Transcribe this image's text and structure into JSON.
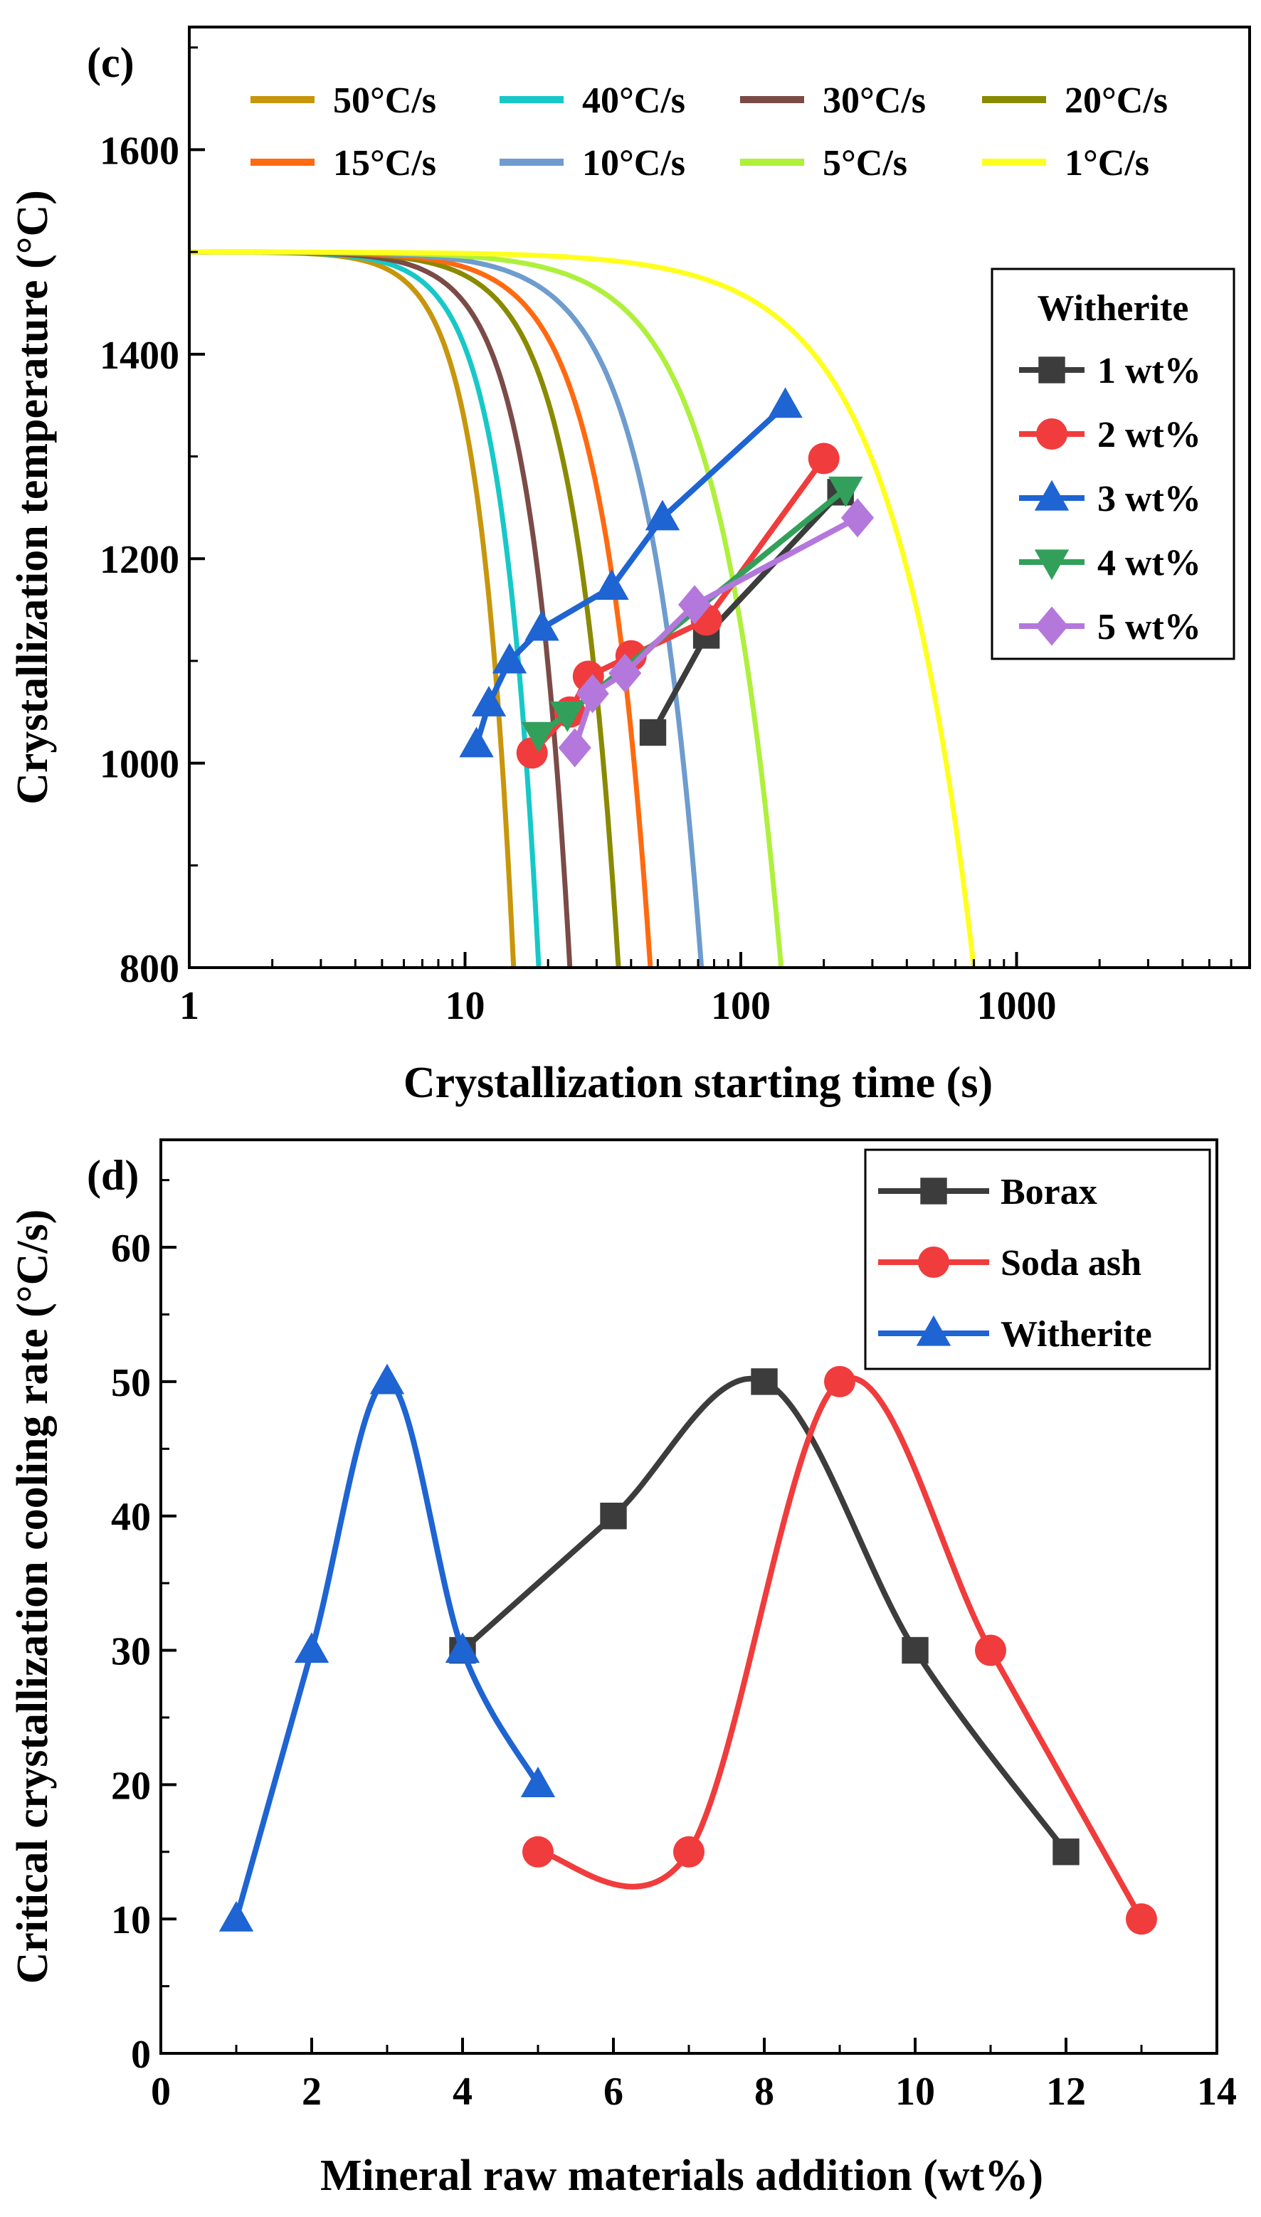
{
  "chart_data": [
    {
      "panel": "(c)",
      "type": "line",
      "xscale": "log",
      "xlabel": "Crystallization starting time (s)",
      "ylabel": "Crystallization temperature (°C)",
      "xlim": [
        1,
        7000
      ],
      "ylim": [
        800,
        1720
      ],
      "x_ticks": [
        1,
        10,
        100,
        1000
      ],
      "x_tick_labels": [
        "1",
        "10",
        "100",
        "1000"
      ],
      "y_ticks": [
        800,
        1000,
        1200,
        1400,
        1600
      ],
      "y_tick_labels": [
        "800",
        "1000",
        "1200",
        "1400",
        "1600"
      ],
      "cooling_curves": [
        {
          "name": "50°C/s",
          "rate": 50,
          "color": "#C8960C",
          "end_time": 15
        },
        {
          "name": "40°C/s",
          "rate": 40,
          "color": "#17C8C8",
          "end_time": 18.5
        },
        {
          "name": "30°C/s",
          "rate": 30,
          "color": "#7B4B47",
          "end_time": 24
        },
        {
          "name": "20°C/s",
          "rate": 20,
          "color": "#8A8A00",
          "end_time": 36
        },
        {
          "name": "15°C/s",
          "rate": 15,
          "color": "#FF6A10",
          "end_time": 47
        },
        {
          "name": "10°C/s",
          "rate": 10,
          "color": "#6E9CCE",
          "end_time": 72
        },
        {
          "name": "5°C/s",
          "rate": 5,
          "color": "#AEF03C",
          "end_time": 140
        },
        {
          "name": "1°C/s",
          "rate": 1,
          "color": "#FFFF1E",
          "end_time": 700
        }
      ],
      "start_temperature": 1500,
      "legend_position": "top",
      "series_legend_title": "Witherite",
      "series_legend_position": "right",
      "series": [
        {
          "name": "1 wt%",
          "color": "#3C3C3C",
          "marker": "square",
          "x": [
            48,
            75,
            230
          ],
          "y": [
            1030,
            1125,
            1265
          ]
        },
        {
          "name": "2 wt%",
          "color": "#F03C3C",
          "marker": "circle",
          "x": [
            17.5,
            24,
            28,
            40,
            75,
            200
          ],
          "y": [
            1010,
            1050,
            1085,
            1105,
            1140,
            1298
          ]
        },
        {
          "name": "3 wt%",
          "color": "#1E64D2",
          "marker": "triangle",
          "x": [
            11,
            12.2,
            14.5,
            19,
            34,
            52,
            145
          ],
          "y": [
            1018,
            1058,
            1100,
            1132,
            1172,
            1240,
            1350
          ]
        },
        {
          "name": "4 wt%",
          "color": "#32A05A",
          "marker": "triangle-down",
          "x": [
            18.5,
            23.5,
            240
          ],
          "y": [
            1028,
            1048,
            1268
          ]
        },
        {
          "name": "5 wt%",
          "color": "#B478DC",
          "marker": "diamond",
          "x": [
            25,
            29,
            38,
            68,
            265
          ],
          "y": [
            1015,
            1068,
            1088,
            1155,
            1240
          ]
        }
      ]
    },
    {
      "panel": "(d)",
      "type": "line",
      "xlabel": "Mineral raw materials addition (wt%)",
      "ylabel": "Critical crystallization cooling rate (°C/s)",
      "xlim": [
        0,
        14
      ],
      "ylim": [
        0,
        68
      ],
      "x_ticks": [
        0,
        2,
        4,
        6,
        8,
        10,
        12,
        14
      ],
      "x_tick_labels": [
        "0",
        "2",
        "4",
        "6",
        "8",
        "10",
        "12",
        "14"
      ],
      "y_ticks": [
        0,
        10,
        20,
        30,
        40,
        50,
        60
      ],
      "y_tick_labels": [
        "0",
        "10",
        "20",
        "30",
        "40",
        "50",
        "60"
      ],
      "legend_position": "top-right",
      "series": [
        {
          "name": "Borax",
          "color": "#3C3C3C",
          "marker": "square",
          "x": [
            4,
            6,
            8,
            10,
            12
          ],
          "y": [
            30,
            40,
            50,
            30,
            15
          ]
        },
        {
          "name": "Soda ash",
          "color": "#F03C3C",
          "marker": "circle",
          "x": [
            5,
            7,
            9,
            11,
            13
          ],
          "y": [
            15,
            15,
            50,
            30,
            10
          ]
        },
        {
          "name": "Witherite",
          "color": "#1E64D2",
          "marker": "triangle",
          "x": [
            1,
            2,
            3,
            4,
            5
          ],
          "y": [
            10,
            30,
            50,
            30,
            20
          ]
        }
      ]
    }
  ]
}
